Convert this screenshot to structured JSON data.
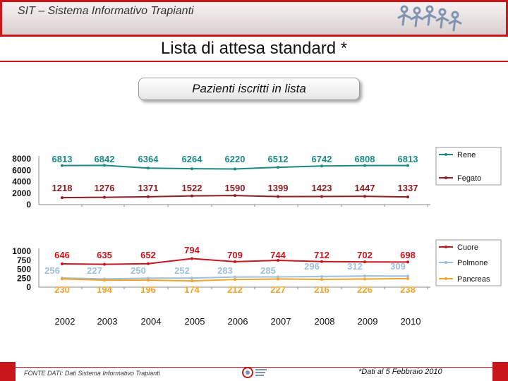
{
  "header": {
    "title": "SIT – Sistema Informativo Trapianti"
  },
  "main": {
    "title": "Lista di attesa standard *",
    "subtitle": "Pazienti iscritti in lista"
  },
  "footer": {
    "source": "FONTE DATI: Dati Sistema Informativo Trapianti",
    "note": "*Dati al 5 Febbraio 2010"
  },
  "colors": {
    "rene": "#1a8a84",
    "fegato": "#8c1e24",
    "cuore": "#c8161d",
    "polmone": "#9fc0dc",
    "pancreas": "#f2a42a",
    "accent": "#c8161d"
  },
  "chart_data": [
    {
      "type": "line",
      "x": [
        "2002",
        "2003",
        "2004",
        "2005",
        "2006",
        "2007",
        "2008",
        "2009",
        "2010"
      ],
      "yticks": [
        "8000",
        "6000",
        "4000",
        "2000",
        "0"
      ],
      "ylim": [
        0,
        8000
      ],
      "series": [
        {
          "name": "Rene",
          "color": "#1a8a84",
          "values": [
            6813,
            6842,
            6364,
            6264,
            6220,
            6512,
            6742,
            6808,
            6813
          ]
        },
        {
          "name": "Fegato",
          "color": "#8c1e24",
          "values": [
            1218,
            1276,
            1371,
            1522,
            1590,
            1399,
            1423,
            1447,
            1337
          ]
        }
      ],
      "legend": "right"
    },
    {
      "type": "line",
      "x": [
        "2002",
        "2003",
        "2004",
        "2005",
        "2006",
        "2007",
        "2008",
        "2009",
        "2010"
      ],
      "yticks": [
        "1000",
        "750",
        "500",
        "250",
        "0"
      ],
      "ylim": [
        0,
        1000
      ],
      "series": [
        {
          "name": "Cuore",
          "color": "#c8161d",
          "values": [
            646,
            635,
            652,
            794,
            709,
            744,
            712,
            702,
            698
          ]
        },
        {
          "name": "Polmone",
          "color": "#9fc0dc",
          "values": [
            256,
            227,
            250,
            252,
            283,
            285,
            296,
            312,
            309
          ]
        },
        {
          "name": "Pancreas",
          "color": "#f2a42a",
          "values": [
            230,
            194,
            196,
            174,
            212,
            227,
            216,
            226,
            238
          ]
        }
      ],
      "legend": "right"
    }
  ]
}
